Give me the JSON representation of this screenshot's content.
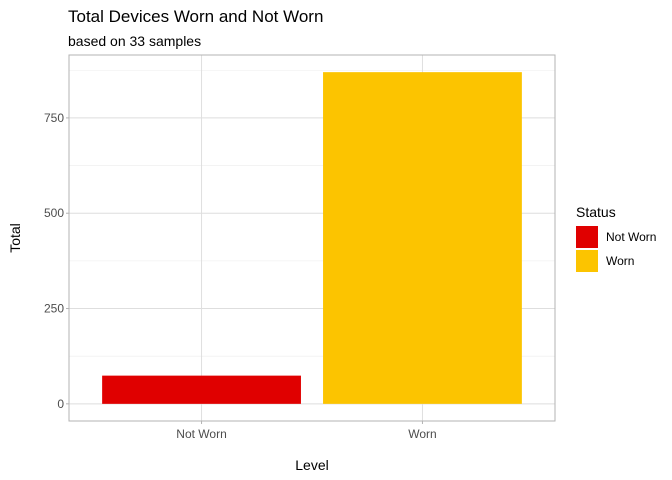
{
  "chart_data": {
    "type": "bar",
    "title": "Total Devices Worn and Not Worn",
    "subtitle": "based on 33 samples",
    "xlabel": "Level",
    "ylabel": "Total",
    "categories": [
      "Not Worn",
      "Worn"
    ],
    "values": [
      74,
      870
    ],
    "colors": [
      "#e00000",
      "#fcc400"
    ],
    "ylim": [
      -45,
      915
    ],
    "yticks": [
      0,
      250,
      500,
      750
    ],
    "grid": true,
    "legend": {
      "title": "Status",
      "placement": "right",
      "entries": [
        {
          "label": "Not Worn",
          "color": "#e00000"
        },
        {
          "label": "Worn",
          "color": "#fcc400"
        }
      ]
    }
  }
}
